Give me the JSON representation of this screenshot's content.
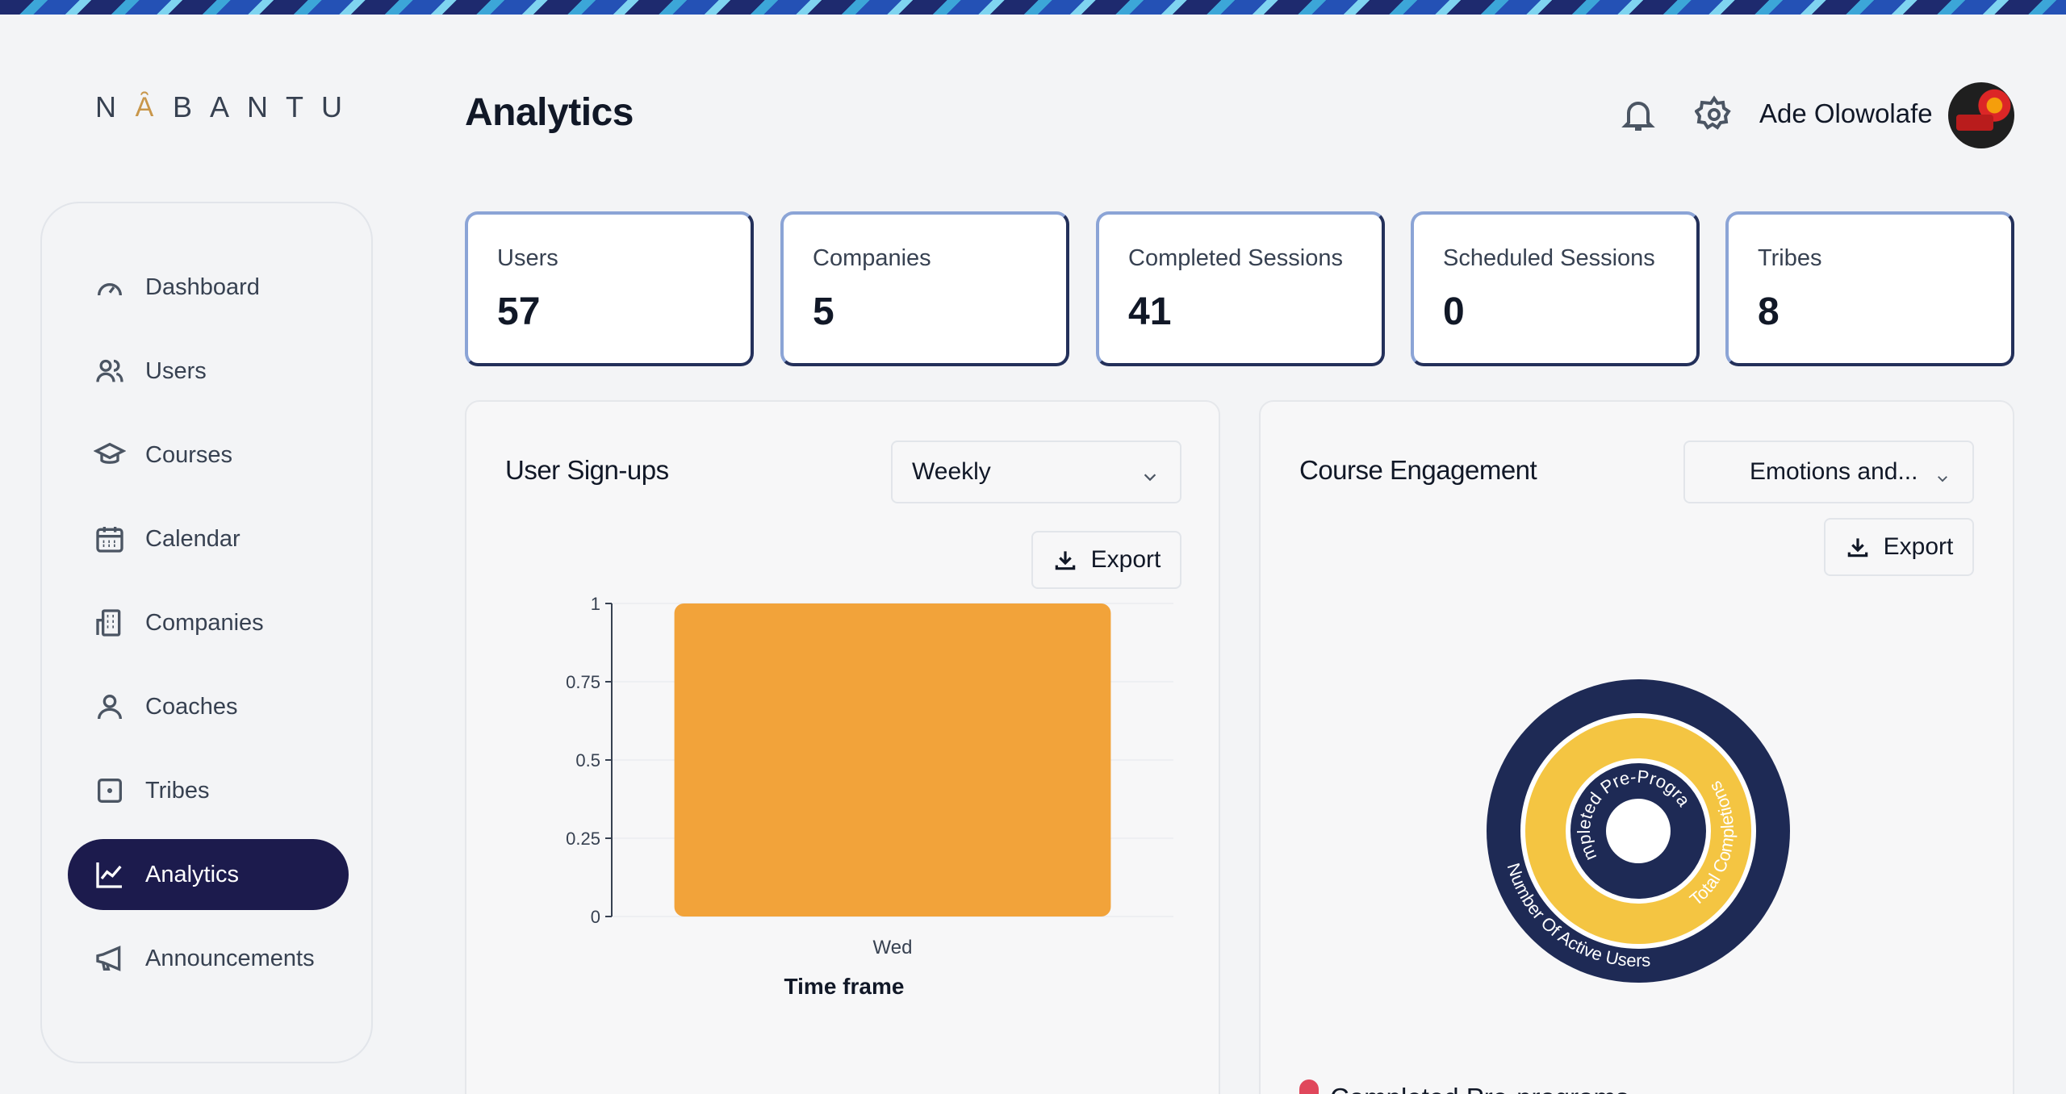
{
  "brand": {
    "logo_text": "N",
    "logo_mark": "Ȃ",
    "logo_rest": "BANTU"
  },
  "header": {
    "title": "Analytics",
    "user_name": "Ade Olowolafe",
    "icons": [
      "bell-icon",
      "gear-icon"
    ]
  },
  "sidebar": {
    "items": [
      {
        "label": "Dashboard",
        "icon": "gauge-icon",
        "active": false
      },
      {
        "label": "Users",
        "icon": "users-icon",
        "active": false
      },
      {
        "label": "Courses",
        "icon": "graduation-cap-icon",
        "active": false
      },
      {
        "label": "Calendar",
        "icon": "calendar-icon",
        "active": false
      },
      {
        "label": "Companies",
        "icon": "building-icon",
        "active": false
      },
      {
        "label": "Coaches",
        "icon": "person-icon",
        "active": false
      },
      {
        "label": "Tribes",
        "icon": "square-dot-icon",
        "active": false
      },
      {
        "label": "Analytics",
        "icon": "line-chart-icon",
        "active": true
      },
      {
        "label": "Announcements",
        "icon": "megaphone-icon",
        "active": false
      }
    ]
  },
  "stats": [
    {
      "label": "Users",
      "value": "57"
    },
    {
      "label": "Companies",
      "value": "5"
    },
    {
      "label": "Completed Sessions",
      "value": "41"
    },
    {
      "label": "Scheduled Sessions",
      "value": "0"
    },
    {
      "label": "Tribes",
      "value": "8"
    }
  ],
  "signups": {
    "title": "User Sign-ups",
    "range_select": "Weekly",
    "export_label": "Export"
  },
  "engagement": {
    "title": "Course Engagement",
    "filter_select": "Emotions and...",
    "export_label": "Export",
    "legend_first": "Completed Pre-programs"
  },
  "colors": {
    "accent": "#1c1b4d",
    "bar": "#f2a33a",
    "ring_outer": "#1e2a55",
    "ring_middle": "#f4c542",
    "legend_dot": "#e0475b"
  },
  "chart_data": [
    {
      "type": "bar",
      "categories": [
        "Wed"
      ],
      "values": [
        1
      ],
      "xlabel": "Time frame",
      "ylabel": "",
      "ylim": [
        0,
        1
      ],
      "yticks": [
        "0",
        "0.25",
        "0.5",
        "0.75",
        "1"
      ],
      "grid": true
    },
    {
      "type": "pie",
      "subtype": "radial",
      "series": [
        {
          "name": "Number Of Active Users"
        },
        {
          "name": "Total Completions"
        },
        {
          "name": "Completed Pre-Programs"
        }
      ]
    }
  ]
}
